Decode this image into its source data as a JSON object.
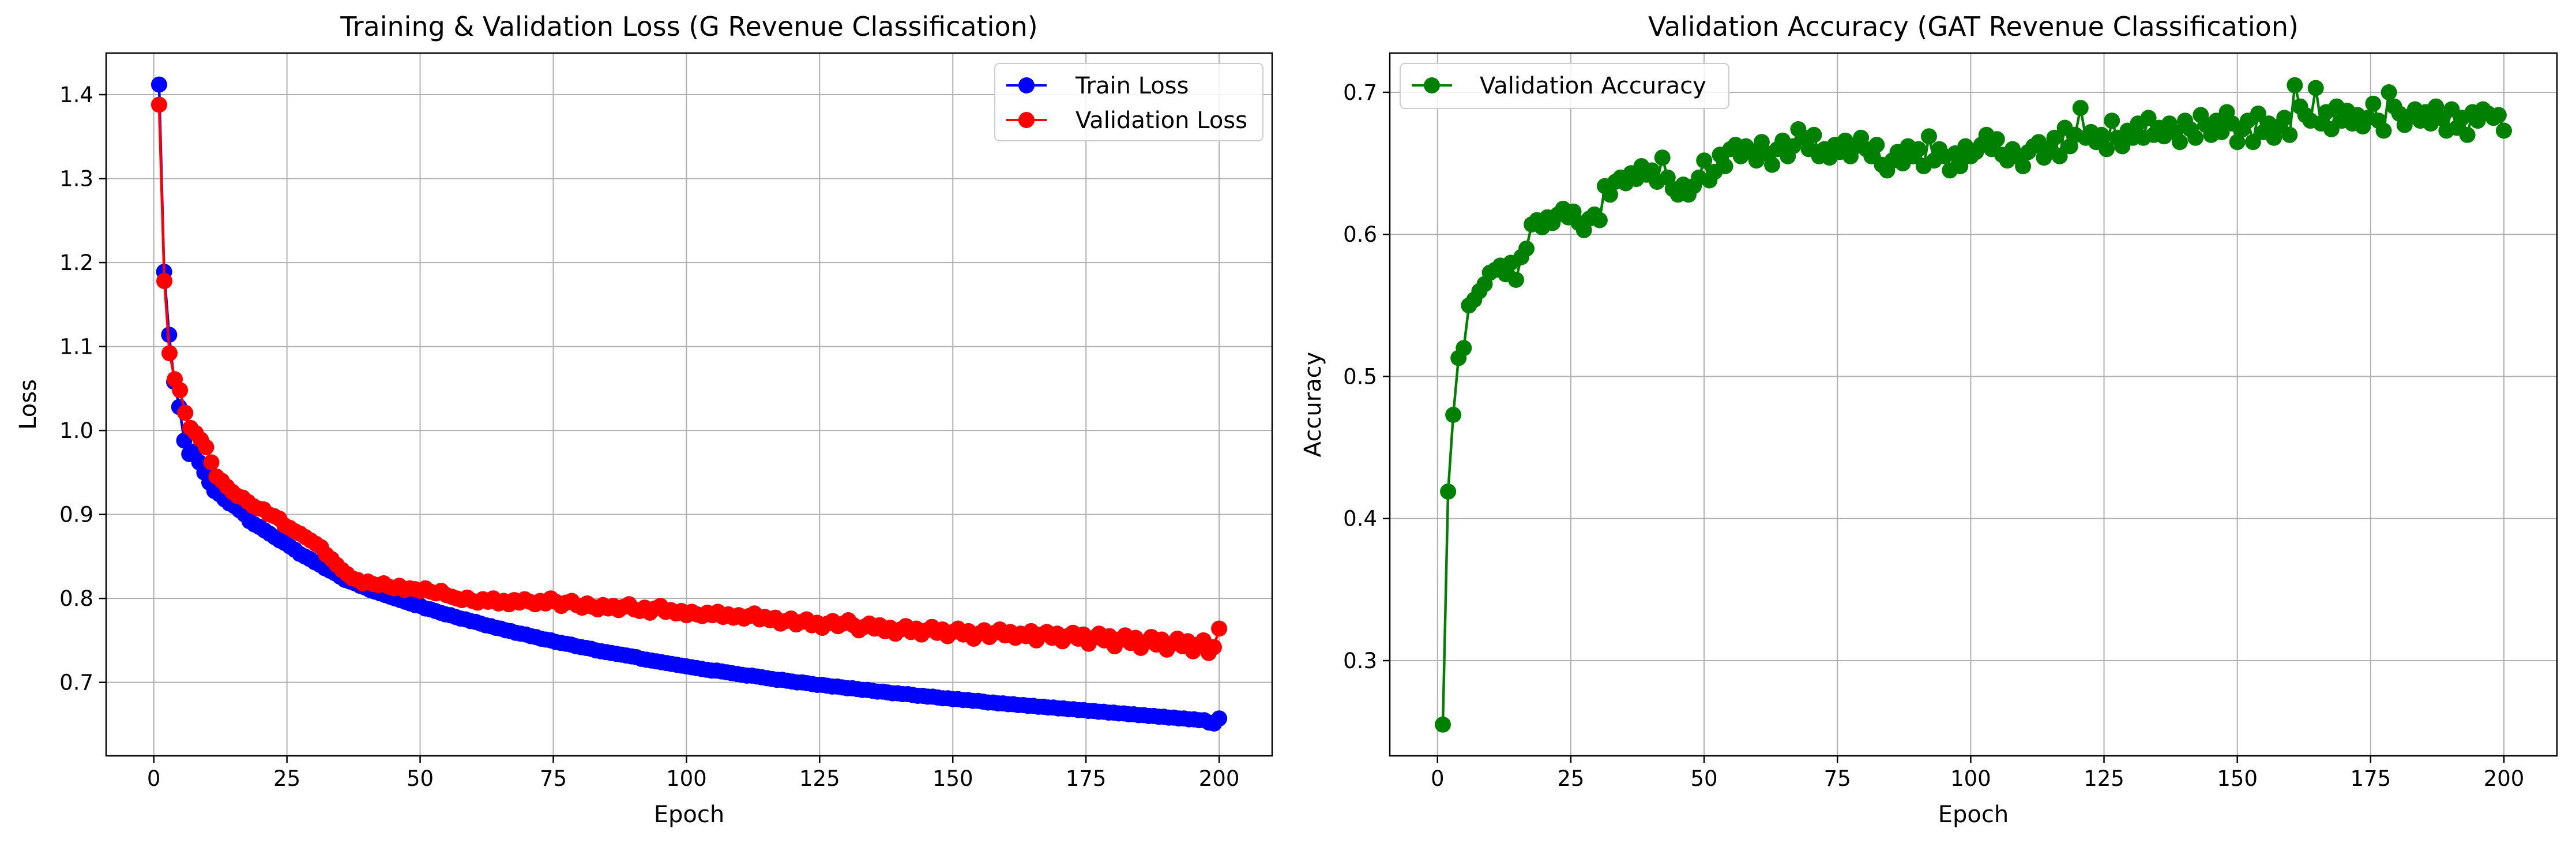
{
  "chart_data": [
    {
      "type": "line",
      "title": "Training & Validation Loss (G Revenue Classification)",
      "xlabel": "Epoch",
      "ylabel": "Loss",
      "xlim": [
        -8.95,
        209.95
      ],
      "ylim": [
        0.6125,
        1.4495
      ],
      "xticks": [
        0,
        25,
        50,
        75,
        100,
        125,
        150,
        175,
        200
      ],
      "yticks": [
        0.7,
        0.8,
        0.9,
        1.0,
        1.1,
        1.2,
        1.3,
        1.4
      ],
      "xtick_labels": [
        "0",
        "25",
        "50",
        "75",
        "100",
        "125",
        "150",
        "175",
        "200"
      ],
      "ytick_labels": [
        "0.7",
        "0.8",
        "0.9",
        "1.0",
        "1.1",
        "1.2",
        "1.3",
        "1.4"
      ],
      "grid": true,
      "legend": "top-right",
      "series": [
        {
          "name": "Train Loss",
          "color": "#0000ff",
          "x_start": 1,
          "x_end": 200,
          "values": [
            1.412,
            1.189,
            1.114,
            1.058,
            1.028,
            0.988,
            0.972,
            0.975,
            0.962,
            0.95,
            0.938,
            0.928,
            0.924,
            0.918,
            0.913,
            0.91,
            0.905,
            0.9,
            0.892,
            0.888,
            0.885,
            0.881,
            0.877,
            0.873,
            0.869,
            0.866,
            0.862,
            0.858,
            0.853,
            0.85,
            0.847,
            0.843,
            0.84,
            0.836,
            0.833,
            0.83,
            0.826,
            0.822,
            0.82,
            0.818,
            0.815,
            0.813,
            0.81,
            0.808,
            0.806,
            0.804,
            0.802,
            0.8,
            0.798,
            0.796,
            0.794,
            0.792,
            0.791,
            0.788,
            0.787,
            0.785,
            0.783,
            0.781,
            0.78,
            0.778,
            0.776,
            0.775,
            0.773,
            0.772,
            0.77,
            0.768,
            0.767,
            0.765,
            0.764,
            0.762,
            0.761,
            0.759,
            0.758,
            0.757,
            0.755,
            0.754,
            0.752,
            0.751,
            0.75,
            0.748,
            0.747,
            0.746,
            0.745,
            0.743,
            0.742,
            0.741,
            0.74,
            0.738,
            0.737,
            0.736,
            0.735,
            0.734,
            0.733,
            0.732,
            0.731,
            0.73,
            0.728,
            0.727,
            0.726,
            0.725,
            0.724,
            0.723,
            0.722,
            0.721,
            0.72,
            0.719,
            0.718,
            0.717,
            0.716,
            0.715,
            0.714,
            0.714,
            0.713,
            0.712,
            0.711,
            0.71,
            0.709,
            0.708,
            0.708,
            0.707,
            0.706,
            0.705,
            0.704,
            0.703,
            0.703,
            0.702,
            0.701,
            0.7,
            0.7,
            0.699,
            0.698,
            0.697,
            0.697,
            0.696,
            0.695,
            0.695,
            0.694,
            0.693,
            0.693,
            0.692,
            0.691,
            0.691,
            0.69,
            0.689,
            0.689,
            0.688,
            0.687,
            0.687,
            0.686,
            0.686,
            0.685,
            0.684,
            0.684,
            0.683,
            0.683,
            0.682,
            0.681,
            0.681,
            0.68,
            0.68,
            0.679,
            0.679,
            0.678,
            0.678,
            0.677,
            0.676,
            0.676,
            0.675,
            0.675,
            0.674,
            0.674,
            0.673,
            0.673,
            0.672,
            0.672,
            0.671,
            0.671,
            0.67,
            0.67,
            0.669,
            0.669,
            0.668,
            0.668,
            0.667,
            0.667,
            0.666,
            0.666,
            0.665,
            0.665,
            0.664,
            0.664,
            0.663,
            0.663,
            0.662,
            0.662,
            0.661,
            0.661,
            0.66,
            0.66,
            0.659,
            0.659,
            0.658,
            0.658,
            0.657,
            0.657,
            0.656,
            0.656,
            0.655,
            0.655,
            0.652,
            0.651,
            0.657
          ]
        },
        {
          "name": "Validation Loss",
          "color": "#ff0000",
          "x_start": 1,
          "x_end": 200,
          "values": [
            1.388,
            1.178,
            1.092,
            1.061,
            1.048,
            1.021,
            1.003,
            0.997,
            0.989,
            0.98,
            0.962,
            0.945,
            0.94,
            0.933,
            0.927,
            0.922,
            0.92,
            0.915,
            0.91,
            0.907,
            0.906,
            0.9,
            0.898,
            0.895,
            0.887,
            0.884,
            0.88,
            0.877,
            0.873,
            0.869,
            0.865,
            0.861,
            0.852,
            0.847,
            0.84,
            0.834,
            0.829,
            0.824,
            0.822,
            0.818,
            0.82,
            0.817,
            0.816,
            0.818,
            0.814,
            0.812,
            0.815,
            0.81,
            0.812,
            0.811,
            0.809,
            0.812,
            0.808,
            0.806,
            0.809,
            0.804,
            0.802,
            0.8,
            0.798,
            0.801,
            0.797,
            0.795,
            0.799,
            0.796,
            0.8,
            0.794,
            0.797,
            0.793,
            0.798,
            0.795,
            0.799,
            0.796,
            0.793,
            0.797,
            0.794,
            0.8,
            0.796,
            0.791,
            0.795,
            0.797,
            0.792,
            0.789,
            0.794,
            0.79,
            0.787,
            0.792,
            0.788,
            0.791,
            0.786,
            0.79,
            0.793,
            0.787,
            0.785,
            0.789,
            0.783,
            0.788,
            0.791,
            0.784,
            0.786,
            0.782,
            0.785,
            0.78,
            0.784,
            0.781,
            0.779,
            0.783,
            0.78,
            0.784,
            0.778,
            0.781,
            0.777,
            0.78,
            0.776,
            0.779,
            0.782,
            0.775,
            0.778,
            0.774,
            0.777,
            0.77,
            0.773,
            0.776,
            0.769,
            0.772,
            0.775,
            0.768,
            0.771,
            0.765,
            0.77,
            0.773,
            0.767,
            0.77,
            0.774,
            0.768,
            0.762,
            0.766,
            0.77,
            0.764,
            0.768,
            0.761,
            0.765,
            0.758,
            0.763,
            0.767,
            0.76,
            0.764,
            0.757,
            0.762,
            0.766,
            0.759,
            0.763,
            0.755,
            0.76,
            0.764,
            0.757,
            0.761,
            0.752,
            0.758,
            0.762,
            0.754,
            0.759,
            0.763,
            0.756,
            0.76,
            0.753,
            0.758,
            0.755,
            0.761,
            0.75,
            0.757,
            0.76,
            0.753,
            0.758,
            0.749,
            0.755,
            0.759,
            0.752,
            0.757,
            0.746,
            0.753,
            0.758,
            0.75,
            0.755,
            0.743,
            0.751,
            0.756,
            0.747,
            0.753,
            0.741,
            0.748,
            0.754,
            0.745,
            0.751,
            0.739,
            0.746,
            0.752,
            0.743,
            0.749,
            0.737,
            0.745,
            0.75,
            0.735,
            0.742,
            0.764
          ]
        }
      ]
    },
    {
      "type": "line",
      "title": "Validation Accuracy (GAT Revenue Classification)",
      "xlabel": "Epoch",
      "ylabel": "Accuracy",
      "xlim": [
        -8.95,
        209.95
      ],
      "ylim": [
        0.233,
        0.7276
      ],
      "xticks": [
        0,
        25,
        50,
        75,
        100,
        125,
        150,
        175,
        200
      ],
      "yticks": [
        0.3,
        0.4,
        0.5,
        0.6,
        0.7
      ],
      "xtick_labels": [
        "0",
        "25",
        "50",
        "75",
        "100",
        "125",
        "150",
        "175",
        "200"
      ],
      "ytick_labels": [
        "0.3",
        "0.4",
        "0.5",
        "0.6",
        "0.7"
      ],
      "grid": true,
      "legend": "top-left",
      "series": [
        {
          "name": "Validation Accuracy",
          "color": "#008000",
          "x_start": 1,
          "x_end": 200,
          "values": [
            0.255,
            0.419,
            0.473,
            0.513,
            0.52,
            0.55,
            0.554,
            0.56,
            0.565,
            0.573,
            0.575,
            0.578,
            0.572,
            0.58,
            0.568,
            0.584,
            0.59,
            0.607,
            0.61,
            0.605,
            0.612,
            0.608,
            0.614,
            0.618,
            0.612,
            0.616,
            0.608,
            0.603,
            0.611,
            0.614,
            0.61,
            0.634,
            0.628,
            0.637,
            0.64,
            0.636,
            0.643,
            0.639,
            0.648,
            0.642,
            0.645,
            0.637,
            0.654,
            0.64,
            0.632,
            0.628,
            0.635,
            0.628,
            0.634,
            0.64,
            0.652,
            0.638,
            0.644,
            0.656,
            0.648,
            0.66,
            0.663,
            0.655,
            0.662,
            0.658,
            0.652,
            0.665,
            0.657,
            0.649,
            0.66,
            0.666,
            0.655,
            0.662,
            0.674,
            0.668,
            0.66,
            0.67,
            0.655,
            0.66,
            0.654,
            0.663,
            0.658,
            0.666,
            0.655,
            0.662,
            0.668,
            0.66,
            0.655,
            0.663,
            0.649,
            0.645,
            0.652,
            0.658,
            0.65,
            0.662,
            0.655,
            0.66,
            0.648,
            0.669,
            0.652,
            0.66,
            0.655,
            0.645,
            0.657,
            0.648,
            0.662,
            0.655,
            0.658,
            0.663,
            0.67,
            0.66,
            0.667,
            0.656,
            0.652,
            0.66,
            0.655,
            0.648,
            0.658,
            0.662,
            0.665,
            0.654,
            0.66,
            0.668,
            0.655,
            0.675,
            0.662,
            0.67,
            0.689,
            0.668,
            0.672,
            0.665,
            0.67,
            0.66,
            0.68,
            0.668,
            0.662,
            0.673,
            0.668,
            0.678,
            0.668,
            0.682,
            0.67,
            0.675,
            0.669,
            0.678,
            0.672,
            0.665,
            0.68,
            0.674,
            0.668,
            0.684,
            0.677,
            0.67,
            0.68,
            0.672,
            0.686,
            0.678,
            0.665,
            0.674,
            0.68,
            0.665,
            0.685,
            0.672,
            0.678,
            0.668,
            0.676,
            0.682,
            0.67,
            0.705,
            0.69,
            0.684,
            0.68,
            0.703,
            0.678,
            0.686,
            0.674,
            0.69,
            0.68,
            0.687,
            0.678,
            0.684,
            0.676,
            0.682,
            0.692,
            0.68,
            0.673,
            0.7,
            0.69,
            0.685,
            0.677,
            0.683,
            0.688,
            0.68,
            0.686,
            0.678,
            0.69,
            0.682,
            0.673,
            0.688,
            0.675,
            0.682,
            0.67,
            0.686,
            0.68,
            0.688,
            0.685,
            0.682,
            0.684,
            0.673
          ]
        }
      ]
    }
  ]
}
